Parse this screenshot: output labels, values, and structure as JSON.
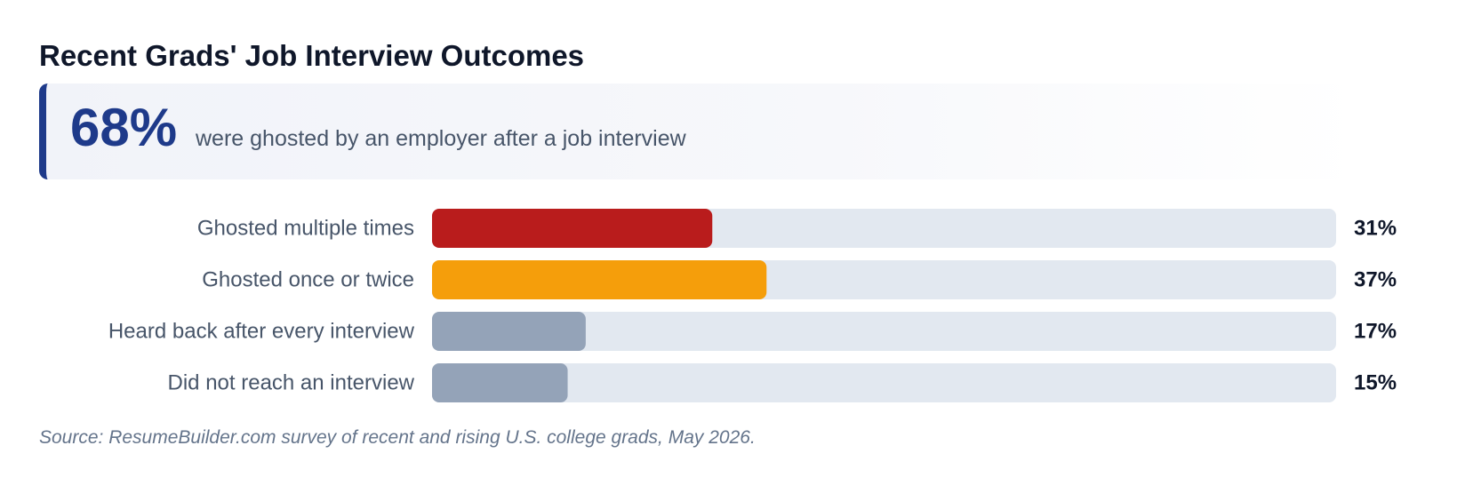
{
  "header": {
    "title": "Recent Grads' Job Interview Outcomes"
  },
  "callout": {
    "value": "68%",
    "text": "were ghosted by an employer after a job interview"
  },
  "chart_data": {
    "type": "bar",
    "orientation": "horizontal",
    "categories": [
      "Ghosted multiple times",
      "Ghosted once or twice",
      "Heard back after every interview",
      "Did not reach an interview"
    ],
    "values": [
      31,
      37,
      17,
      15
    ],
    "value_labels": [
      "31%",
      "37%",
      "17%",
      "15%"
    ],
    "colors": [
      "#b91c1c",
      "#f59e0b",
      "#94a3b8",
      "#94a3b8"
    ],
    "track_color": "#e2e8f0",
    "xlim": [
      0,
      100
    ],
    "unit": "%",
    "grid": false
  },
  "footer": {
    "source": "Source: ResumeBuilder.com survey of recent and rising U.S. college grads, May 2026."
  }
}
